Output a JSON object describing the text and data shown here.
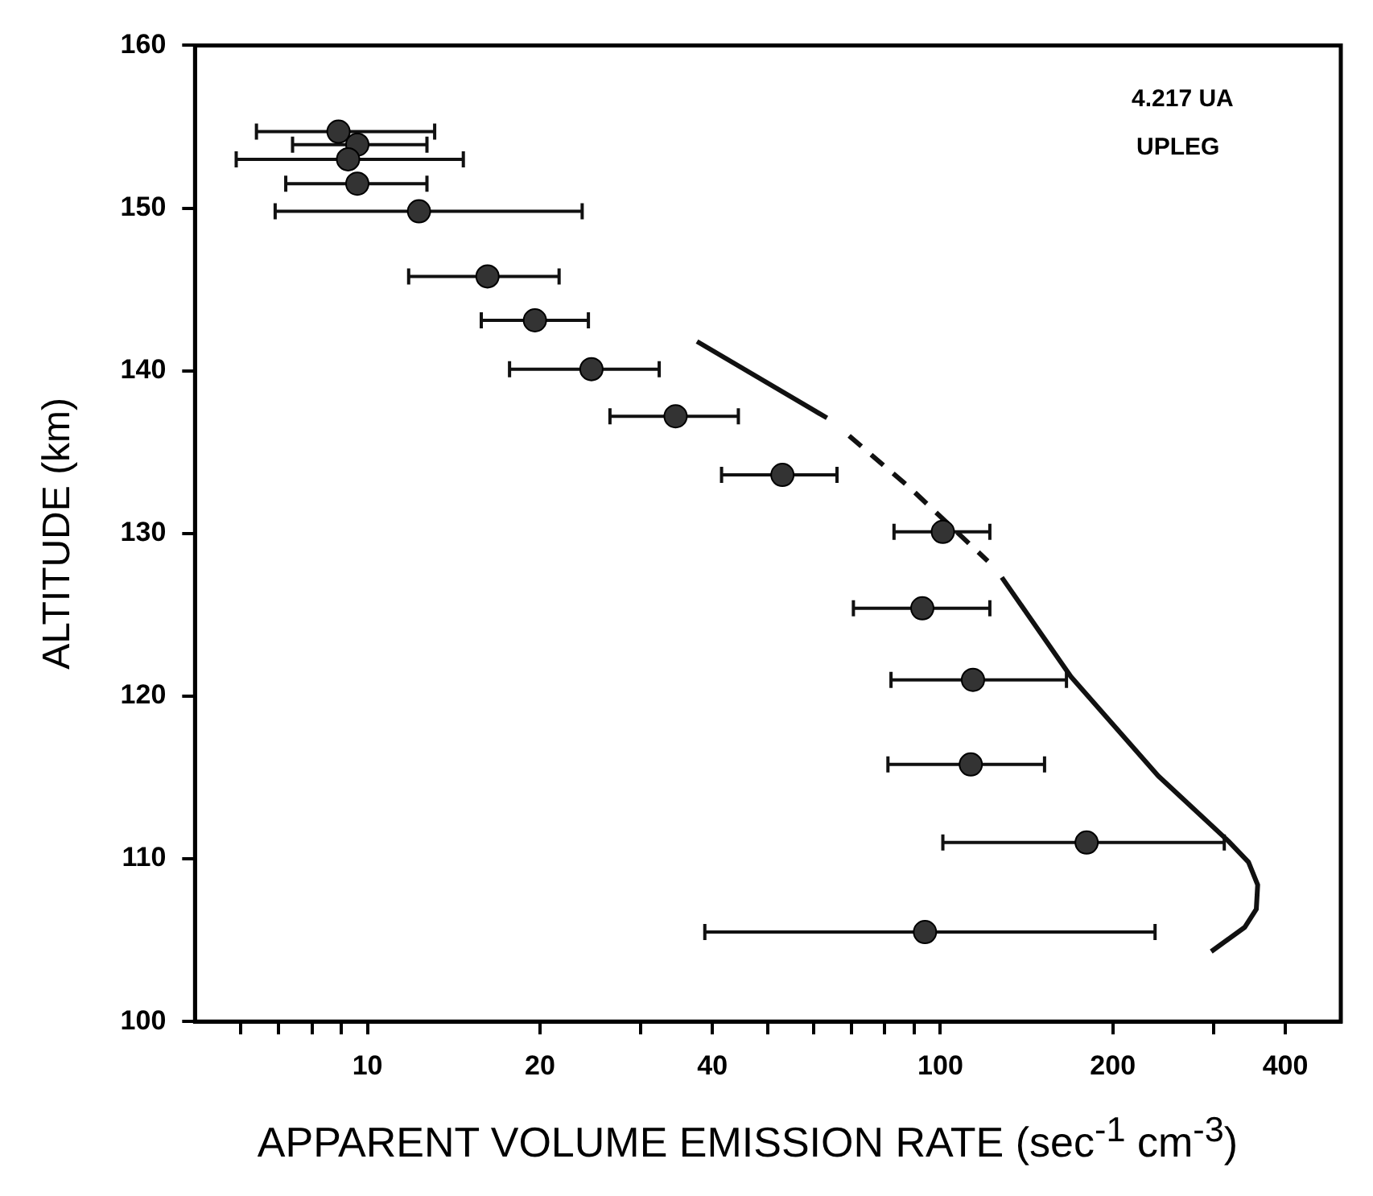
{
  "chart_data": {
    "type": "scatter",
    "xlabel": "APPARENT VOLUME EMISSION RATE (sec$^{-1}$ cm$^{-3}$)",
    "ylabel": "ALTITUDE (km)",
    "annotations": [
      "4.217 UA",
      "UPLEG"
    ],
    "log": "x",
    "grid": false,
    "legend": false,
    "xlim": [
      5,
      500
    ],
    "xticks": [
      {
        "value": 6,
        "label": null
      },
      {
        "value": 7,
        "label": null
      },
      {
        "value": 8,
        "label": null
      },
      {
        "value": 9,
        "label": null
      },
      10,
      20,
      {
        "value": 30,
        "label": null
      },
      40,
      {
        "value": 50,
        "label": null
      },
      {
        "value": 60,
        "label": null
      },
      {
        "value": 70,
        "label": null
      },
      {
        "value": 80,
        "label": null
      },
      {
        "value": 90,
        "label": null
      },
      100,
      200,
      {
        "value": 300,
        "label": null
      },
      400
    ],
    "ylim": [
      100,
      160
    ],
    "yticks": [
      100,
      110,
      120,
      130,
      140,
      150,
      160
    ],
    "series": [
      {
        "marker": "circle",
        "color": "#333333",
        "x": [
          8.9,
          9.6,
          9.25,
          9.6,
          12.3,
          16.2,
          19.6,
          24.6,
          34.5,
          53,
          101,
          93,
          114,
          113,
          180,
          94
        ],
        "values": [
          154.7,
          153.9,
          153.0,
          151.5,
          149.8,
          145.8,
          143.1,
          140.1,
          137.2,
          133.6,
          130.1,
          125.4,
          121.0,
          115.8,
          111.0,
          105.5
        ],
        "xerrors": [
          [
            6.4,
            13.1
          ],
          [
            7.4,
            12.7
          ],
          [
            5.9,
            14.7
          ],
          [
            7.2,
            12.7
          ],
          [
            6.9,
            23.7
          ],
          [
            11.8,
            21.6
          ],
          [
            15.8,
            24.3
          ],
          [
            17.7,
            32.3
          ],
          [
            26.5,
            44.4
          ],
          [
            41.5,
            66
          ],
          [
            83,
            122
          ],
          [
            70.5,
            122
          ],
          [
            82,
            166
          ],
          [
            81,
            152
          ],
          [
            101,
            313
          ],
          [
            38.8,
            237
          ]
        ]
      },
      {
        "type": "line",
        "marker": "none",
        "color": "#111111",
        "line_style": "solid",
        "x": [
          37.6,
          63.4
        ],
        "values": [
          141.8,
          137.1
        ]
      },
      {
        "type": "line",
        "marker": "none",
        "color": "#111111",
        "line_style": "dashed",
        "x": [
          69.3,
          88.5,
          121
        ],
        "values": [
          136.0,
          132.8,
          128.3
        ]
      },
      {
        "type": "line",
        "marker": "none",
        "color": "#111111",
        "line_style": "solid",
        "x": [
          128,
          169,
          240,
          318,
          345,
          358,
          356,
          340,
          297
        ],
        "values": [
          127.3,
          121.2,
          115.1,
          111.1,
          109.8,
          108.4,
          106.9,
          105.8,
          104.3
        ]
      }
    ]
  }
}
